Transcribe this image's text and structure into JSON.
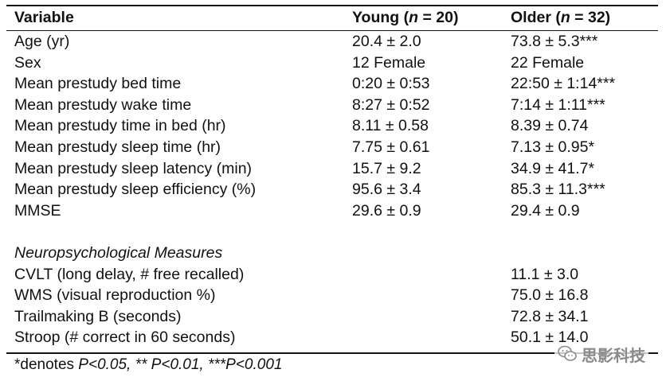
{
  "header": {
    "variable": "Variable",
    "young_prefix": "Young (",
    "young_n": "n",
    "young_suffix": " = 20)",
    "older_prefix": "Older (",
    "older_n": "n",
    "older_suffix": " = 32)"
  },
  "rows": [
    {
      "variable": "Age (yr)",
      "young": "20.4 ± 2.0",
      "older": "73.8 ± 5.3***"
    },
    {
      "variable": "Sex",
      "young": "12 Female",
      "older": "22 Female"
    },
    {
      "variable": "Mean prestudy bed time",
      "young": "0:20 ± 0:53",
      "older": "22:50 ± 1:14***"
    },
    {
      "variable": "Mean prestudy wake time",
      "young": "8:27 ± 0:52",
      "older": "7:14 ± 1:11***"
    },
    {
      "variable": "Mean prestudy time in bed (hr)",
      "young": "8.11 ± 0.58",
      "older": "8.39 ± 0.74"
    },
    {
      "variable": "Mean prestudy sleep time (hr)",
      "young": "7.75 ± 0.61",
      "older": "7.13 ± 0.95*"
    },
    {
      "variable": "Mean prestudy sleep latency (min)",
      "young": "15.7 ± 9.2",
      "older": "34.9 ± 41.7*"
    },
    {
      "variable": "Mean prestudy sleep efficiency (%)",
      "young": "95.6 ± 3.4",
      "older": "85.3 ± 11.3***"
    },
    {
      "variable": "MMSE",
      "young": "29.6 ± 0.9",
      "older": "29.4 ± 0.9"
    }
  ],
  "section_title": "Neuropsychological Measures",
  "neuro_rows": [
    {
      "variable": "CVLT (long delay, # free recalled)",
      "older": "11.1 ± 3.0"
    },
    {
      "variable": "WMS (visual reproduction %)",
      "older": "75.0 ± 16.8"
    },
    {
      "variable": "Trailmaking B (seconds)",
      "older": "72.8 ± 34.1"
    },
    {
      "variable": "Stroop (# correct in 60 seconds)",
      "older": "50.1 ± 14.0"
    }
  ],
  "footnote": {
    "prefix": "*denotes ",
    "p1": "P<0.05, ",
    "p2": "** P<0.01, ",
    "p3": "***P<0.001"
  },
  "watermark": {
    "icon": "wechat-icon",
    "text": "思影科技"
  }
}
